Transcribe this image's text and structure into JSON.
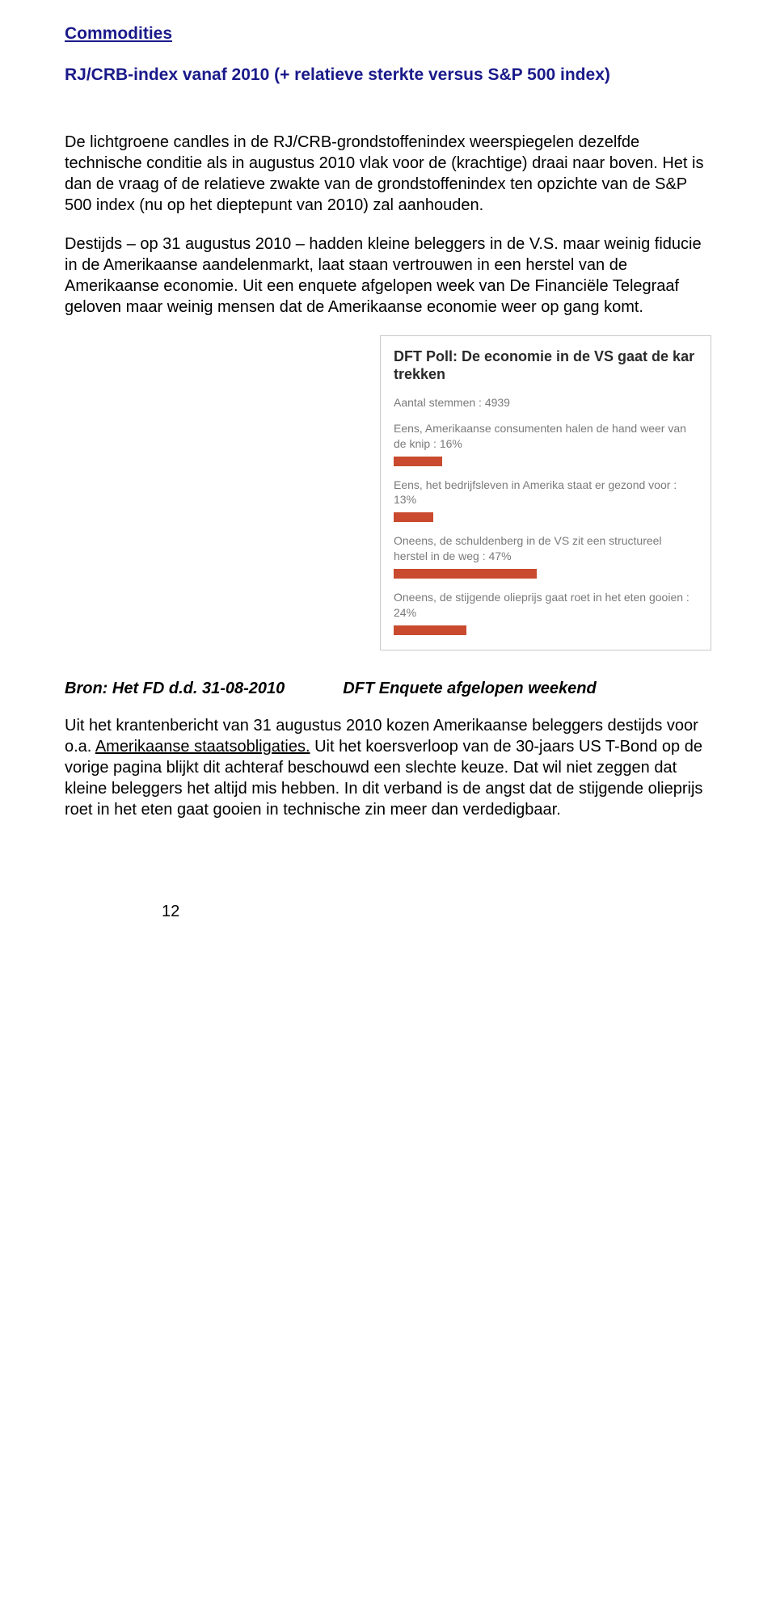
{
  "section": {
    "title": "Commodities",
    "subtitle": "RJ/CRB-index vanaf 2010 (+ relatieve sterkte versus S&P 500 index)"
  },
  "paragraphs": {
    "p1": "De lichtgroene candles in de RJ/CRB-grondstoffenindex weerspiegelen dezelfde technische conditie als in augustus 2010 vlak voor de (krachtige) draai naar boven. Het is dan de vraag of de relatieve zwakte van de grondstoffenindex ten opzichte van de S&P 500 index (nu op het dieptepunt van 2010) zal aanhouden.",
    "p2": "Destijds – op 31 augustus 2010 – hadden kleine beleggers in de V.S. maar weinig fiducie in de Amerikaanse aandelenmarkt, laat staan vertrouwen in een herstel van de Amerikaanse economie. Uit een enquete afgelopen week van De Financiële Telegraaf geloven maar weinig mensen dat de Amerikaanse economie weer op gang komt."
  },
  "poll": {
    "title": "DFT Poll: De economie in de VS gaat de kar trekken",
    "count_label": "Aantal stemmen : 4939",
    "bar_color": "#c94a2e",
    "items": [
      {
        "label": "Eens, Amerikaanse consumenten halen de hand weer van de knip : 16%",
        "percent": 16
      },
      {
        "label": "Eens, het bedrijfsleven in Amerika staat er gezond voor : 13%",
        "percent": 13
      },
      {
        "label": "Oneens, de schuldenberg in de VS zit een structureel herstel in de weg : 47%",
        "percent": 47
      },
      {
        "label": "Oneens, de stijgende olieprijs gaat roet in het eten gooien : 24%",
        "percent": 24
      }
    ]
  },
  "source": {
    "left": "Bron: Het FD d.d. 31-08-2010",
    "right": "DFT Enquete afgelopen weekend"
  },
  "closing": {
    "pre": "Uit het krantenbericht van 31 augustus 2010 kozen Amerikaanse beleggers destijds voor o.a. ",
    "underlined": "Amerikaanse staatsobligaties.",
    "post": " Uit het koersverloop van de 30-jaars US T-Bond op de vorige pagina blijkt dit achteraf beschouwd een slechte keuze. Dat wil niet zeggen dat kleine beleggers het altijd mis hebben. In dit verband is de angst dat de stijgende olieprijs roet in het eten gaat gooien in technische zin meer dan verdedigbaar."
  },
  "page_number": "12"
}
